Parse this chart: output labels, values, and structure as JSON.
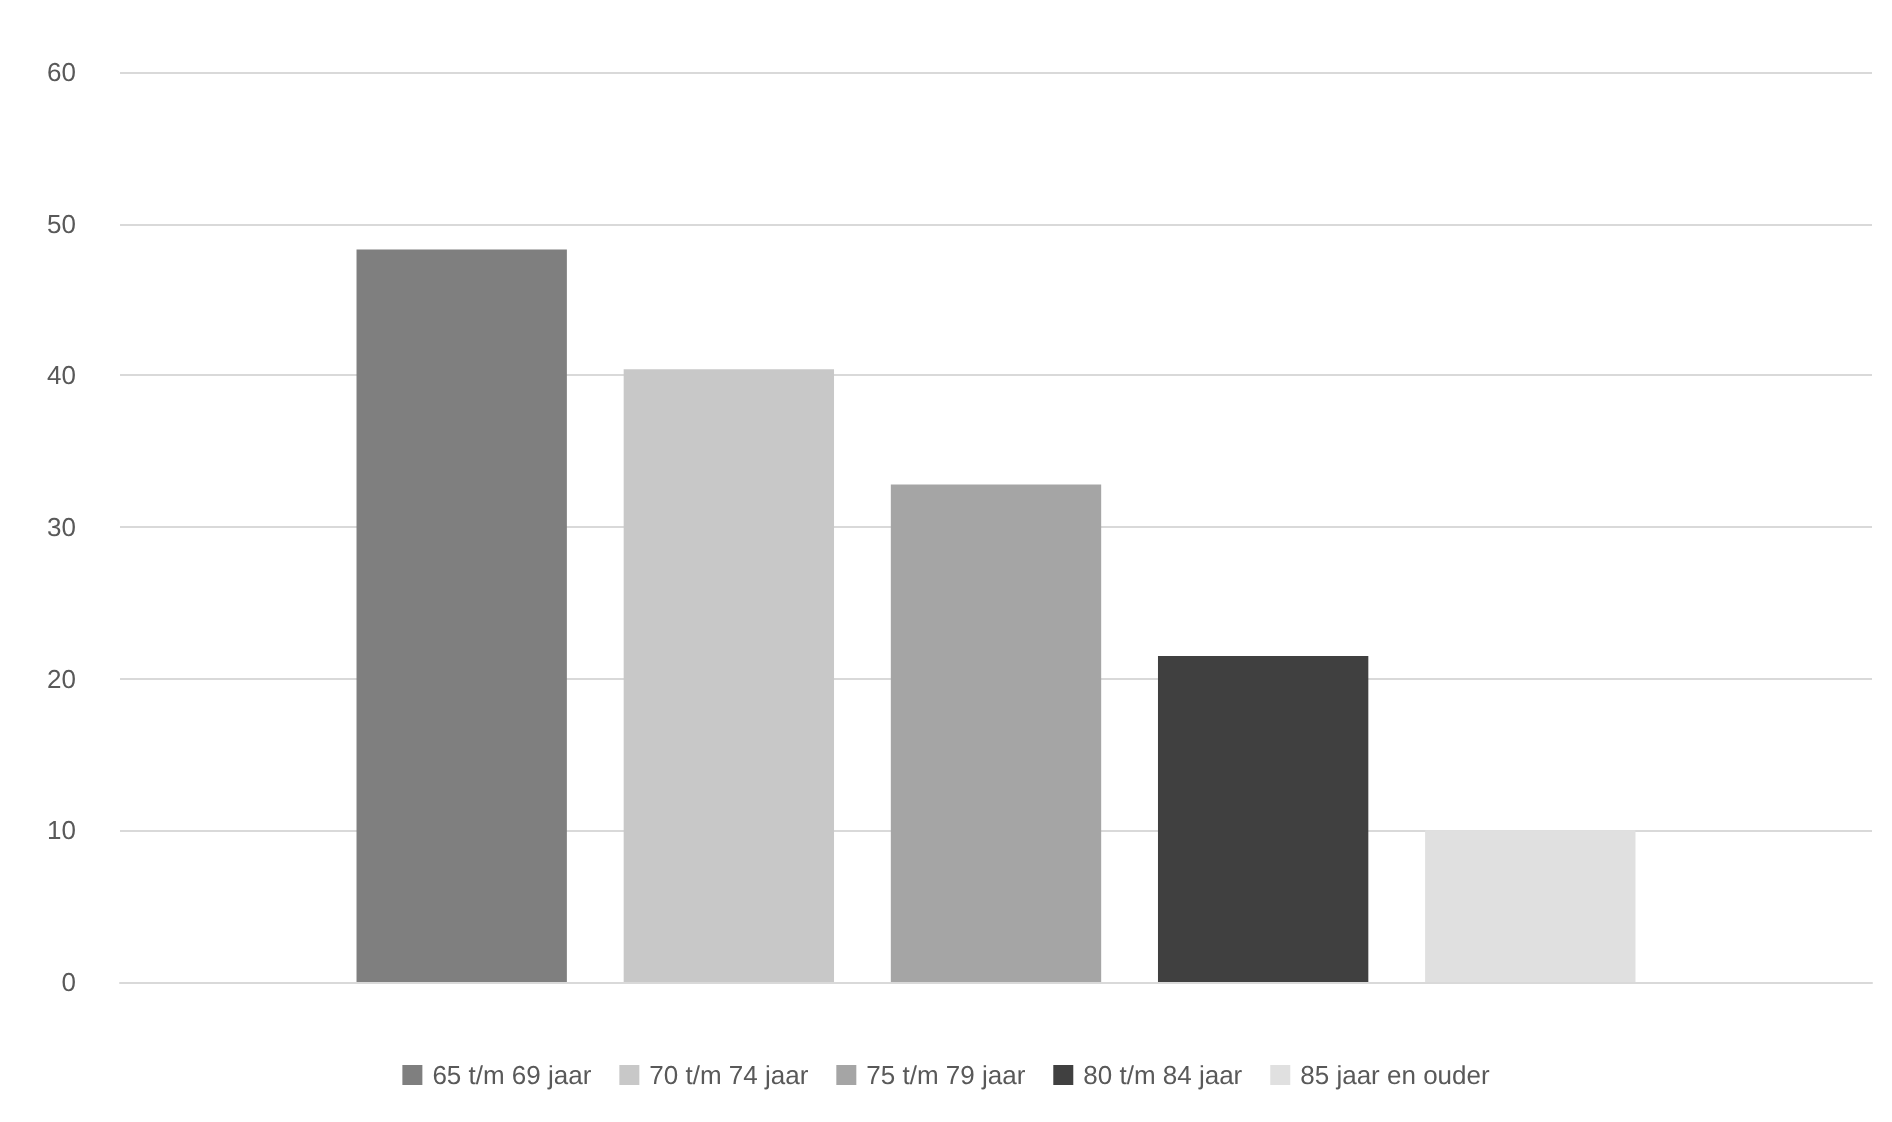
{
  "chart_data": {
    "type": "bar",
    "categories": [
      null
    ],
    "series": [
      {
        "name": "65 t/m 69 jaar",
        "color": "#7f7f7f",
        "values": [
          48.3
        ]
      },
      {
        "name": "70 t/m 74 jaar",
        "color": "#c8c8c8",
        "values": [
          40.4
        ]
      },
      {
        "name": "75 t/m 79 jaar",
        "color": "#a5a5a5",
        "values": [
          32.8
        ]
      },
      {
        "name": "80 t/m 84 jaar",
        "color": "#404040",
        "values": [
          21.5
        ]
      },
      {
        "name": "85 jaar en ouder",
        "color": "#e0e0e0",
        "values": [
          10.0
        ]
      }
    ],
    "ylim": [
      0,
      60
    ],
    "yticks": [
      0,
      10,
      20,
      30,
      40,
      50,
      60
    ],
    "grid": "y",
    "legend": "bottom",
    "tick_labels": "y"
  }
}
